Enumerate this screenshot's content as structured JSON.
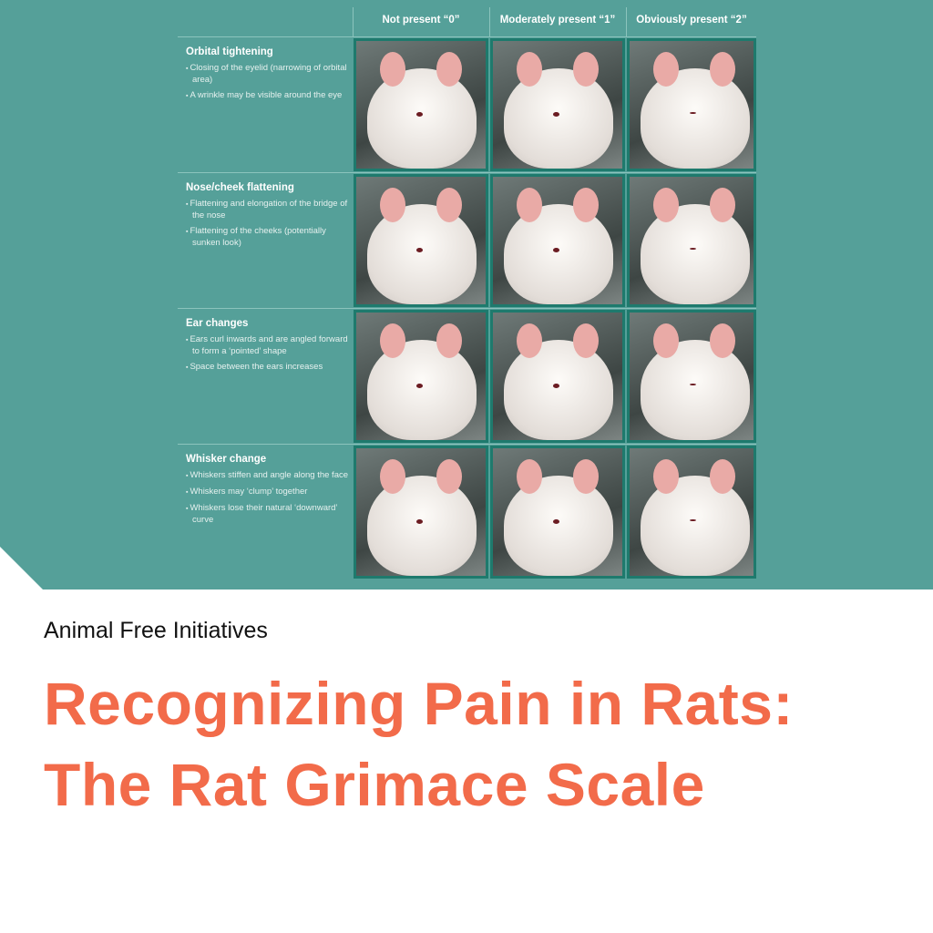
{
  "table": {
    "columns": [
      "Not present “0”",
      "Moderately present “1”",
      "Obviously present “2”"
    ],
    "rows": [
      {
        "title": "Orbital tightening",
        "bullets": [
          "Closing of the eyelid (narrowing of orbital area)",
          "A wrinkle may be visible around the eye"
        ]
      },
      {
        "title": "Nose/cheek flattening",
        "bullets": [
          "Flattening and elongation of the bridge of the nose",
          "Flattening of the cheeks (potentially sunken look)"
        ]
      },
      {
        "title": "Ear changes",
        "bullets": [
          "Ears curl inwards and are angled forward to form a ‘pointed’ shape",
          "Space between the ears increases"
        ]
      },
      {
        "title": "Whisker change",
        "bullets": [
          "Whiskers stiffen and angle along the face",
          "Whiskers may ‘clump’ together",
          "Whiskers lose their natural ‘downward’ curve"
        ]
      }
    ]
  },
  "subtitle": "Animal Free Initiatives",
  "title": "Recognizing Pain in Rats: The Rat Grimace Scale",
  "colors": {
    "teal": "#55a099",
    "accent": "#f26b4a",
    "photo_border": "#1e7a6d"
  }
}
